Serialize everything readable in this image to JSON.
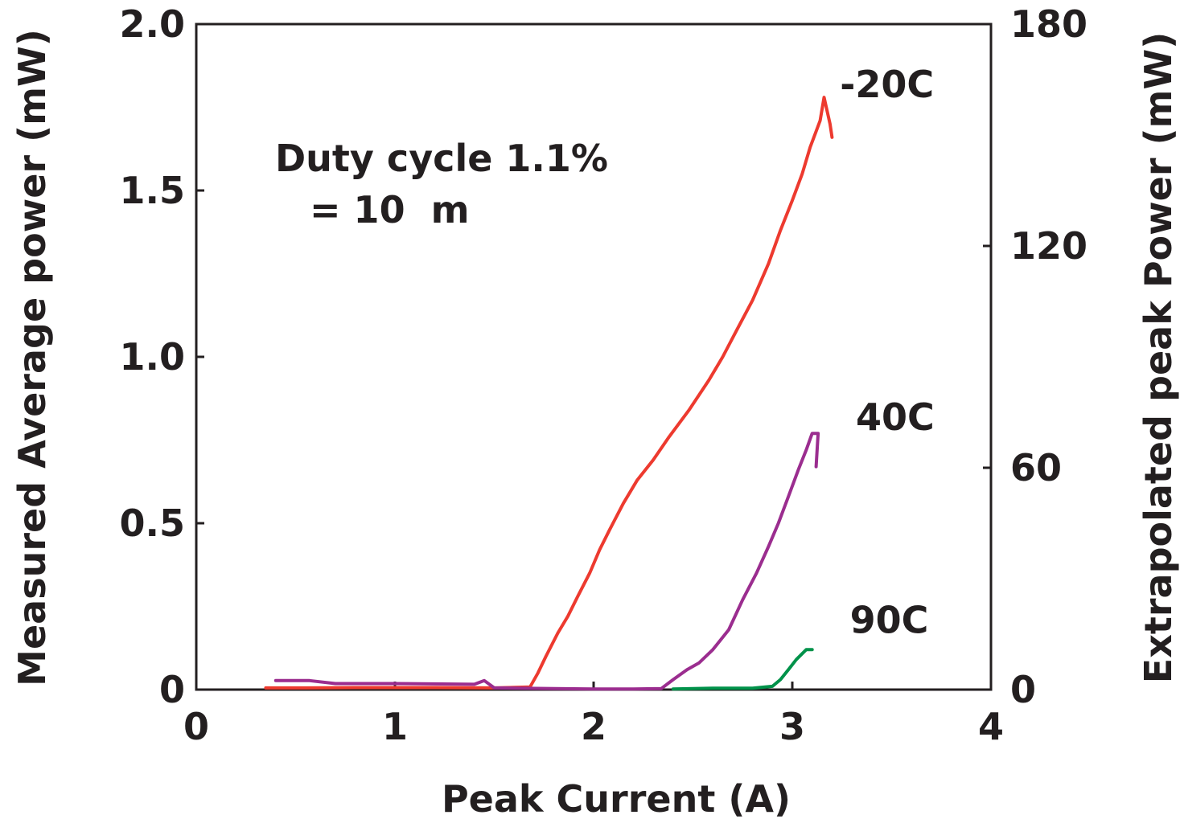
{
  "chart_data": {
    "type": "line",
    "xlabel": "Peak Current (A)",
    "ylabel": "Measured Average power (mW)",
    "y2label": "Extrapolated peak Power (mW)",
    "xlim": [
      0,
      4
    ],
    "ylim": [
      0,
      2.0
    ],
    "y2lim": [
      0,
      180
    ],
    "xticks": [
      "0",
      "1",
      "2",
      "3",
      "4"
    ],
    "yticks": [
      "0",
      "0.5",
      "1.0",
      "1.5",
      "2.0"
    ],
    "y2ticks": [
      "0",
      "60",
      "120",
      "180"
    ],
    "grid": false,
    "annotations": [
      "Duty cycle 1.1%",
      "= 10  m"
    ],
    "series": [
      {
        "name": "-20C",
        "color": "#ed3a2f",
        "x": [
          0.35,
          0.5,
          0.8,
          1.2,
          1.5,
          1.68,
          1.72,
          1.76,
          1.82,
          1.87,
          1.92,
          1.98,
          2.03,
          2.08,
          2.15,
          2.22,
          2.3,
          2.38,
          2.48,
          2.58,
          2.65,
          2.72,
          2.8,
          2.88,
          2.94,
          3.0,
          3.05,
          3.09,
          3.14,
          3.16,
          3.19,
          3.2
        ],
        "y": [
          0.005,
          0.005,
          0.006,
          0.006,
          0.005,
          0.008,
          0.05,
          0.1,
          0.17,
          0.22,
          0.28,
          0.35,
          0.42,
          0.48,
          0.56,
          0.63,
          0.69,
          0.76,
          0.84,
          0.93,
          1.0,
          1.08,
          1.17,
          1.28,
          1.38,
          1.47,
          1.55,
          1.63,
          1.71,
          1.78,
          1.7,
          1.66
        ]
      },
      {
        "name": "40C",
        "color": "#9b2d8f",
        "x": [
          0.4,
          0.57,
          0.7,
          1.0,
          1.4,
          1.45,
          1.5,
          1.8,
          2.0,
          2.2,
          2.34,
          2.4,
          2.47,
          2.53,
          2.6,
          2.68,
          2.75,
          2.82,
          2.88,
          2.93,
          2.98,
          3.03,
          3.07,
          3.1,
          3.13,
          3.12
        ],
        "y": [
          0.027,
          0.027,
          0.018,
          0.018,
          0.016,
          0.027,
          0.005,
          0.003,
          0.002,
          0.002,
          0.003,
          0.03,
          0.06,
          0.08,
          0.12,
          0.18,
          0.27,
          0.35,
          0.43,
          0.5,
          0.58,
          0.66,
          0.72,
          0.77,
          0.77,
          0.67
        ]
      },
      {
        "name": "90C",
        "color": "#00924a",
        "x": [
          2.4,
          2.6,
          2.8,
          2.9,
          2.94,
          2.98,
          3.02,
          3.07,
          3.1
        ],
        "y": [
          0.002,
          0.004,
          0.004,
          0.01,
          0.03,
          0.06,
          0.09,
          0.12,
          0.12
        ]
      }
    ]
  }
}
